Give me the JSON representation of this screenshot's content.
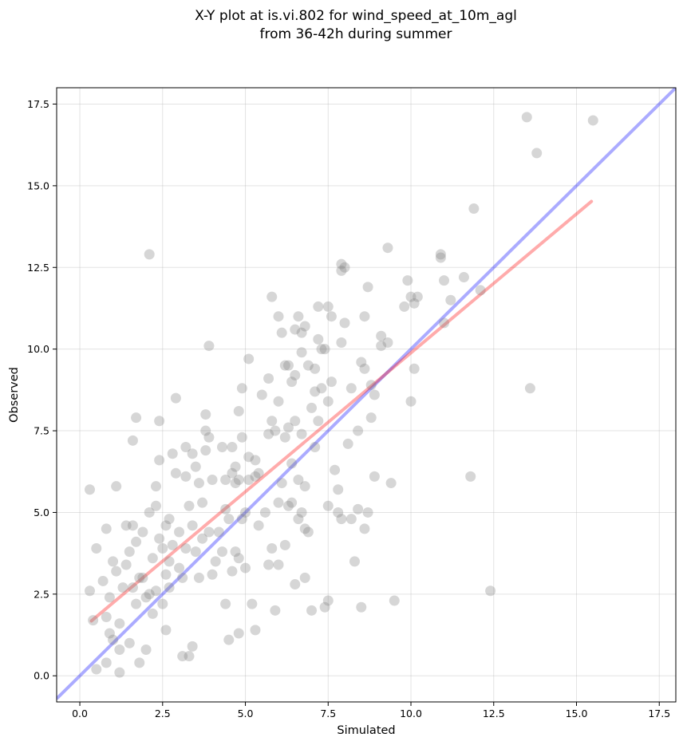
{
  "chart_data": {
    "type": "scatter",
    "title_line1": "X-Y plot at is.vi.802 for wind_speed_at_10m_agl",
    "title_line2": "from 36-42h during summer",
    "xlabel": "Simulated",
    "ylabel": "Observed",
    "xlim": [
      -0.7,
      18.0
    ],
    "ylim": [
      -0.8,
      18.0
    ],
    "xticks": [
      "0.0",
      "2.5",
      "5.0",
      "7.5",
      "10.0",
      "12.5",
      "15.0",
      "17.5"
    ],
    "yticks": [
      "0.0",
      "2.5",
      "5.0",
      "7.5",
      "10.0",
      "12.5",
      "15.0",
      "17.5"
    ],
    "grid": true,
    "colors": {
      "points": "#808080",
      "one_to_one_line": "#0000ff",
      "fit_line": "#ff0000"
    },
    "one_to_one_line": {
      "x": [
        -0.7,
        18.0
      ],
      "y": [
        -0.7,
        18.0
      ]
    },
    "fit_line": {
      "x": [
        0.35,
        15.45
      ],
      "y": [
        1.68,
        14.52
      ]
    },
    "points": [
      [
        0.3,
        5.7
      ],
      [
        0.3,
        2.6
      ],
      [
        0.5,
        3.9
      ],
      [
        0.4,
        1.7
      ],
      [
        0.5,
        0.2
      ],
      [
        0.7,
        2.9
      ],
      [
        0.8,
        4.5
      ],
      [
        0.8,
        1.8
      ],
      [
        0.9,
        1.3
      ],
      [
        0.8,
        0.4
      ],
      [
        0.9,
        2.4
      ],
      [
        1.0,
        3.5
      ],
      [
        1.0,
        1.1
      ],
      [
        1.1,
        3.2
      ],
      [
        1.1,
        5.8
      ],
      [
        1.2,
        1.6
      ],
      [
        1.2,
        0.8
      ],
      [
        1.2,
        0.1
      ],
      [
        1.3,
        2.7
      ],
      [
        1.4,
        4.6
      ],
      [
        1.4,
        3.4
      ],
      [
        1.5,
        3.8
      ],
      [
        1.5,
        1.0
      ],
      [
        1.6,
        4.6
      ],
      [
        1.6,
        2.7
      ],
      [
        1.7,
        4.1
      ],
      [
        1.6,
        7.2
      ],
      [
        1.7,
        7.9
      ],
      [
        1.7,
        2.2
      ],
      [
        1.8,
        3.0
      ],
      [
        1.8,
        0.4
      ],
      [
        1.9,
        4.4
      ],
      [
        1.9,
        3.0
      ],
      [
        2.0,
        2.4
      ],
      [
        2.0,
        0.8
      ],
      [
        2.1,
        12.9
      ],
      [
        2.1,
        5.0
      ],
      [
        2.1,
        2.5
      ],
      [
        2.2,
        3.6
      ],
      [
        2.2,
        1.9
      ],
      [
        2.3,
        5.8
      ],
      [
        2.3,
        5.2
      ],
      [
        2.3,
        2.6
      ],
      [
        2.4,
        6.6
      ],
      [
        2.4,
        7.8
      ],
      [
        2.4,
        4.2
      ],
      [
        2.5,
        3.9
      ],
      [
        2.5,
        2.2
      ],
      [
        2.6,
        4.6
      ],
      [
        2.6,
        3.1
      ],
      [
        2.6,
        1.4
      ],
      [
        2.7,
        4.8
      ],
      [
        2.7,
        3.5
      ],
      [
        2.7,
        2.7
      ],
      [
        2.8,
        6.8
      ],
      [
        2.8,
        4.0
      ],
      [
        2.9,
        8.5
      ],
      [
        2.9,
        6.2
      ],
      [
        3.0,
        4.4
      ],
      [
        3.0,
        3.3
      ],
      [
        3.1,
        3.0
      ],
      [
        3.1,
        0.6
      ],
      [
        3.2,
        7.0
      ],
      [
        3.2,
        6.1
      ],
      [
        3.2,
        3.9
      ],
      [
        3.3,
        5.2
      ],
      [
        3.3,
        0.6
      ],
      [
        3.4,
        6.8
      ],
      [
        3.4,
        4.6
      ],
      [
        3.4,
        0.9
      ],
      [
        3.5,
        6.4
      ],
      [
        3.5,
        3.8
      ],
      [
        3.6,
        5.9
      ],
      [
        3.6,
        3.0
      ],
      [
        3.7,
        5.3
      ],
      [
        3.7,
        4.2
      ],
      [
        3.8,
        8.0
      ],
      [
        3.8,
        7.5
      ],
      [
        3.8,
        6.9
      ],
      [
        3.9,
        10.1
      ],
      [
        3.9,
        7.3
      ],
      [
        3.9,
        4.4
      ],
      [
        4.0,
        6.0
      ],
      [
        4.0,
        3.1
      ],
      [
        4.1,
        3.5
      ],
      [
        4.2,
        4.4
      ],
      [
        4.3,
        3.8
      ],
      [
        4.3,
        7.0
      ],
      [
        4.4,
        6.0
      ],
      [
        4.4,
        5.1
      ],
      [
        4.4,
        2.2
      ],
      [
        4.5,
        4.8
      ],
      [
        4.5,
        1.1
      ],
      [
        4.6,
        6.2
      ],
      [
        4.6,
        7.0
      ],
      [
        4.6,
        3.2
      ],
      [
        4.7,
        6.4
      ],
      [
        4.7,
        5.9
      ],
      [
        4.7,
        3.8
      ],
      [
        4.8,
        8.1
      ],
      [
        4.8,
        6.0
      ],
      [
        4.8,
        3.6
      ],
      [
        4.8,
        1.3
      ],
      [
        4.9,
        8.8
      ],
      [
        4.9,
        7.3
      ],
      [
        4.9,
        4.8
      ],
      [
        5.0,
        5.0
      ],
      [
        5.0,
        3.3
      ],
      [
        5.1,
        9.7
      ],
      [
        5.1,
        6.7
      ],
      [
        5.1,
        6.0
      ],
      [
        5.2,
        2.2
      ],
      [
        5.3,
        6.6
      ],
      [
        5.3,
        6.1
      ],
      [
        5.3,
        1.4
      ],
      [
        5.4,
        4.6
      ],
      [
        5.4,
        6.2
      ],
      [
        5.5,
        8.6
      ],
      [
        5.6,
        5.0
      ],
      [
        5.7,
        9.1
      ],
      [
        5.7,
        7.4
      ],
      [
        5.7,
        3.4
      ],
      [
        5.8,
        11.6
      ],
      [
        5.8,
        7.8
      ],
      [
        5.8,
        3.9
      ],
      [
        5.9,
        7.5
      ],
      [
        5.9,
        2.0
      ],
      [
        6.0,
        11.0
      ],
      [
        6.0,
        8.4
      ],
      [
        6.0,
        5.3
      ],
      [
        6.0,
        3.4
      ],
      [
        6.1,
        10.5
      ],
      [
        6.1,
        5.9
      ],
      [
        6.2,
        9.5
      ],
      [
        6.2,
        7.3
      ],
      [
        6.2,
        4.0
      ],
      [
        6.3,
        9.5
      ],
      [
        6.3,
        7.6
      ],
      [
        6.3,
        5.2
      ],
      [
        6.4,
        9.0
      ],
      [
        6.4,
        6.5
      ],
      [
        6.4,
        5.3
      ],
      [
        6.5,
        10.6
      ],
      [
        6.5,
        9.2
      ],
      [
        6.5,
        7.8
      ],
      [
        6.5,
        2.8
      ],
      [
        6.6,
        11.0
      ],
      [
        6.6,
        6.0
      ],
      [
        6.6,
        4.8
      ],
      [
        6.7,
        10.5
      ],
      [
        6.7,
        9.9
      ],
      [
        6.7,
        7.4
      ],
      [
        6.7,
        5.0
      ],
      [
        6.8,
        10.7
      ],
      [
        6.8,
        5.8
      ],
      [
        6.8,
        4.5
      ],
      [
        6.8,
        3.0
      ],
      [
        6.9,
        9.5
      ],
      [
        6.9,
        4.4
      ],
      [
        7.0,
        8.2
      ],
      [
        7.0,
        2.0
      ],
      [
        7.1,
        9.4
      ],
      [
        7.1,
        8.7
      ],
      [
        7.1,
        7.0
      ],
      [
        7.2,
        11.3
      ],
      [
        7.2,
        10.3
      ],
      [
        7.2,
        7.8
      ],
      [
        7.3,
        10.0
      ],
      [
        7.3,
        8.8
      ],
      [
        7.4,
        10.0
      ],
      [
        7.4,
        2.1
      ],
      [
        7.5,
        11.3
      ],
      [
        7.5,
        8.4
      ],
      [
        7.5,
        5.2
      ],
      [
        7.5,
        2.3
      ],
      [
        7.6,
        11.0
      ],
      [
        7.6,
        9.0
      ],
      [
        7.7,
        6.3
      ],
      [
        7.8,
        5.7
      ],
      [
        7.8,
        5.0
      ],
      [
        7.9,
        12.6
      ],
      [
        7.9,
        12.4
      ],
      [
        7.9,
        10.2
      ],
      [
        7.9,
        4.8
      ],
      [
        8.0,
        12.5
      ],
      [
        8.0,
        10.8
      ],
      [
        8.1,
        7.1
      ],
      [
        8.2,
        8.8
      ],
      [
        8.2,
        4.8
      ],
      [
        8.3,
        3.5
      ],
      [
        8.4,
        7.5
      ],
      [
        8.4,
        5.1
      ],
      [
        8.5,
        9.6
      ],
      [
        8.5,
        2.1
      ],
      [
        8.6,
        11.0
      ],
      [
        8.6,
        9.4
      ],
      [
        8.6,
        4.5
      ],
      [
        8.7,
        11.9
      ],
      [
        8.7,
        5.0
      ],
      [
        8.8,
        8.9
      ],
      [
        8.8,
        7.9
      ],
      [
        8.9,
        8.6
      ],
      [
        8.9,
        6.1
      ],
      [
        9.1,
        10.4
      ],
      [
        9.1,
        10.1
      ],
      [
        9.3,
        13.1
      ],
      [
        9.3,
        10.2
      ],
      [
        9.4,
        5.9
      ],
      [
        9.5,
        2.3
      ],
      [
        9.8,
        11.3
      ],
      [
        9.9,
        12.1
      ],
      [
        10.0,
        11.6
      ],
      [
        10.0,
        8.4
      ],
      [
        10.1,
        11.4
      ],
      [
        10.1,
        9.4
      ],
      [
        10.2,
        11.6
      ],
      [
        10.9,
        12.9
      ],
      [
        10.9,
        12.8
      ],
      [
        11.0,
        12.1
      ],
      [
        11.0,
        10.8
      ],
      [
        11.2,
        11.5
      ],
      [
        11.6,
        12.2
      ],
      [
        11.8,
        6.1
      ],
      [
        11.9,
        14.3
      ],
      [
        12.1,
        11.8
      ],
      [
        12.4,
        2.6
      ],
      [
        13.5,
        17.1
      ],
      [
        13.6,
        8.8
      ],
      [
        13.8,
        16.0
      ],
      [
        15.5,
        17.0
      ]
    ]
  }
}
